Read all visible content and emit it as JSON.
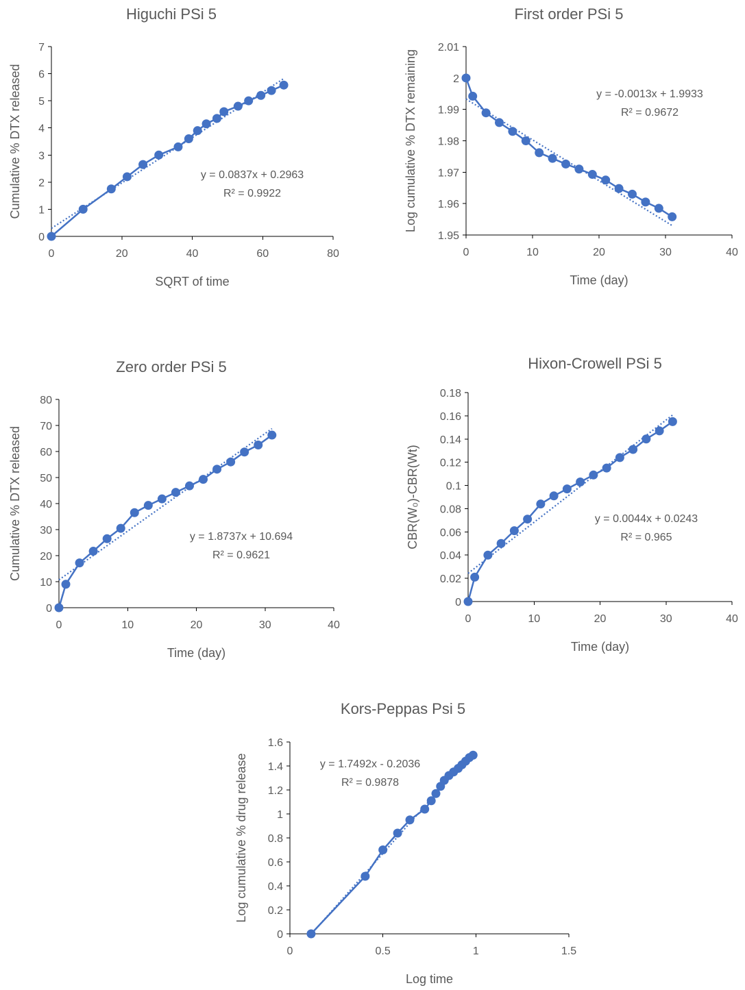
{
  "colors": {
    "series": "#4472C4",
    "text": "#595959",
    "axis": "#000000"
  },
  "chart_data": [
    {
      "type": "scatter",
      "title": "Higuchi PSi 5",
      "xlabel": "SQRT of time",
      "ylabel": "Cumulative % DTX released",
      "xlim": [
        0,
        80
      ],
      "ylim": [
        0,
        7
      ],
      "xticks": [
        0,
        20,
        40,
        60,
        80
      ],
      "yticks": [
        0,
        1,
        2,
        3,
        4,
        5,
        6,
        7
      ],
      "x": [
        0,
        9,
        17,
        21.5,
        26,
        30.5,
        36,
        39,
        41.5,
        44,
        47,
        49,
        53,
        56,
        59.5,
        62.5,
        66
      ],
      "y": [
        0,
        1,
        1.75,
        2.2,
        2.65,
        3.0,
        3.3,
        3.6,
        3.9,
        4.15,
        4.35,
        4.6,
        4.8,
        5.0,
        5.2,
        5.38,
        5.58
      ],
      "trendline": {
        "slope": 0.0837,
        "intercept": 0.2963,
        "x_range": [
          0,
          66
        ]
      },
      "equation": "y = 0.0837x + 0.2963",
      "r2": "R² = 0.9922"
    },
    {
      "type": "scatter",
      "title": "First order PSi 5",
      "xlabel": "Time (day)",
      "ylabel": "Log cumulative % DTX remaining",
      "xlim": [
        0,
        40
      ],
      "ylim": [
        1.95,
        2.01
      ],
      "xticks": [
        0,
        10,
        20,
        30,
        40
      ],
      "yticks": [
        1.95,
        1.96,
        1.97,
        1.98,
        1.99,
        2,
        2.01
      ],
      "x": [
        0,
        1,
        3,
        5,
        7,
        9,
        11,
        13,
        15,
        17,
        19,
        21,
        23,
        25,
        27,
        29,
        31
      ],
      "y": [
        2.0,
        1.9942,
        1.9889,
        1.9858,
        1.983,
        1.98,
        1.9762,
        1.9744,
        1.9726,
        1.971,
        1.9693,
        1.9675,
        1.9648,
        1.963,
        1.9605,
        1.9585,
        1.9558
      ],
      "trendline": {
        "slope": -0.0013,
        "intercept": 1.9933,
        "x_range": [
          0,
          31
        ]
      },
      "equation": "y = -0.0013x + 1.9933",
      "r2": "R² = 0.9672"
    },
    {
      "type": "scatter",
      "title": "Zero order PSi 5",
      "xlabel": "Time (day)",
      "ylabel": "Cumulative % DTX released",
      "xlim": [
        0,
        40
      ],
      "ylim": [
        0,
        80
      ],
      "xticks": [
        0,
        10,
        20,
        30,
        40
      ],
      "yticks": [
        0,
        10,
        20,
        30,
        40,
        50,
        60,
        70,
        80
      ],
      "x": [
        0,
        1,
        3,
        5,
        7,
        9,
        11,
        13,
        15,
        17,
        19,
        21,
        23,
        25,
        27,
        29,
        31
      ],
      "y": [
        0,
        9,
        17.2,
        21.7,
        26.5,
        30.5,
        36.5,
        39.3,
        41.8,
        44.3,
        46.8,
        49.3,
        53.2,
        56.0,
        59.8,
        62.5,
        66.3
      ],
      "trendline": {
        "slope": 1.8737,
        "intercept": 10.694,
        "x_range": [
          0,
          31
        ]
      },
      "equation": "y = 1.8737x + 10.694",
      "r2": "R² = 0.9621"
    },
    {
      "type": "scatter",
      "title": "Hixon-Crowell PSi 5",
      "xlabel": "Time (day)",
      "ylabel": "CBR(W₀)-CBR(Wt)",
      "xlim": [
        0,
        40
      ],
      "ylim": [
        0,
        0.18
      ],
      "xticks": [
        0,
        10,
        20,
        30,
        40
      ],
      "yticks": [
        0,
        0.02,
        0.04,
        0.06,
        0.08,
        0.1,
        0.12,
        0.14,
        0.16,
        0.18
      ],
      "x": [
        0,
        1,
        3,
        5,
        7,
        9,
        11,
        13,
        15,
        17,
        19,
        21,
        23,
        25,
        27,
        29,
        31
      ],
      "y": [
        0,
        0.021,
        0.04,
        0.05,
        0.061,
        0.071,
        0.084,
        0.091,
        0.097,
        0.103,
        0.109,
        0.115,
        0.124,
        0.131,
        0.14,
        0.147,
        0.155
      ],
      "trendline": {
        "slope": 0.0044,
        "intercept": 0.0243,
        "x_range": [
          0,
          31
        ]
      },
      "equation": "y = 0.0044x + 0.0243",
      "r2": "R² = 0.965"
    },
    {
      "type": "scatter",
      "title": "Kors-Peppas  Psi 5",
      "xlabel": "Log time",
      "ylabel": "Log cumulative % drug release",
      "xlim": [
        0,
        1.5
      ],
      "ylim": [
        0,
        1.6
      ],
      "xticks": [
        0,
        0.5,
        1,
        1.5
      ],
      "yticks": [
        0,
        0.2,
        0.4,
        0.6,
        0.8,
        1,
        1.2,
        1.4,
        1.6
      ],
      "x": [
        0.114,
        0.405,
        0.5,
        0.579,
        0.645,
        0.725,
        0.76,
        0.785,
        0.81,
        0.83,
        0.855,
        0.88,
        0.905,
        0.925,
        0.945,
        0.965,
        0.985
      ],
      "y": [
        0,
        0.48,
        0.7,
        0.84,
        0.95,
        1.04,
        1.11,
        1.17,
        1.23,
        1.28,
        1.32,
        1.35,
        1.38,
        1.41,
        1.44,
        1.47,
        1.49
      ],
      "trendline": {
        "slope": 1.7492,
        "intercept": -0.2036,
        "x_range": [
          0.114,
          0.985
        ]
      },
      "equation": "y = 1.7492x - 0.2036",
      "r2": "R² = 0.9878"
    }
  ]
}
